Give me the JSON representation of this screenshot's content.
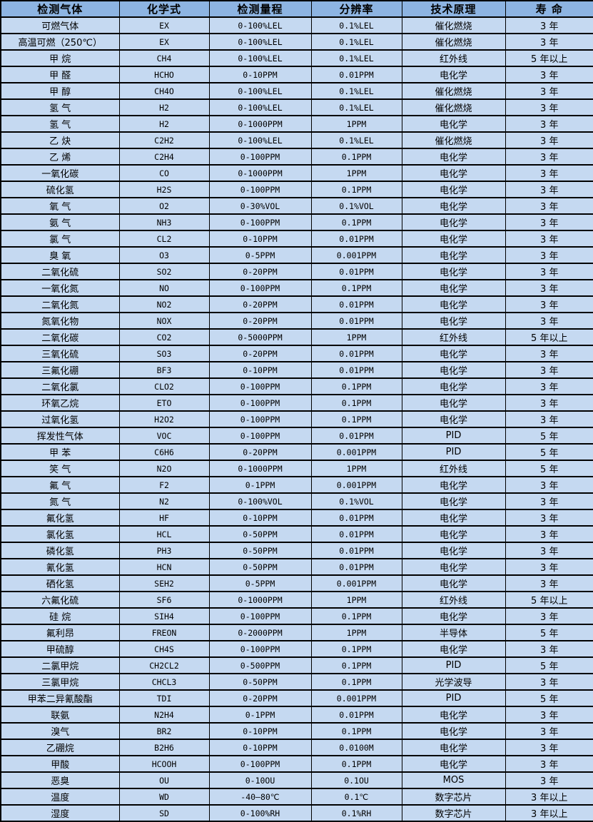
{
  "table": {
    "columns": [
      {
        "key": "gas",
        "label": "检测气体"
      },
      {
        "key": "formula",
        "label": "化学式"
      },
      {
        "key": "range",
        "label": "检测量程"
      },
      {
        "key": "resolution",
        "label": "分辨率"
      },
      {
        "key": "principle",
        "label": "技术原理"
      },
      {
        "key": "lifespan",
        "label": "寿 命"
      }
    ],
    "rows": [
      [
        "可燃气体",
        "EX",
        "0-100%LEL",
        "0.1%LEL",
        "催化燃烧",
        "3 年"
      ],
      [
        "高温可燃（250℃）",
        "EX",
        "0-100%LEL",
        "0.1%LEL",
        "催化燃烧",
        "3 年"
      ],
      [
        "甲 烷",
        "CH4",
        "0-100%LEL",
        "0.1%LEL",
        "红外线",
        "5 年以上"
      ],
      [
        "甲 醛",
        "HCHO",
        "0-10PPM",
        "0.01PPM",
        "电化学",
        "3 年"
      ],
      [
        "甲 醇",
        "CH4O",
        "0-100%LEL",
        "0.1%LEL",
        "催化燃烧",
        "3 年"
      ],
      [
        "氢 气",
        "H2",
        "0-100%LEL",
        "0.1%LEL",
        "催化燃烧",
        "3 年"
      ],
      [
        "氢 气",
        "H2",
        "0-1000PPM",
        "1PPM",
        "电化学",
        "3 年"
      ],
      [
        "乙 炔",
        "C2H2",
        "0-100%LEL",
        "0.1%LEL",
        "催化燃烧",
        "3 年"
      ],
      [
        "乙 烯",
        "C2H4",
        "0-100PPM",
        "0.1PPM",
        "电化学",
        "3 年"
      ],
      [
        "一氧化碳",
        "CO",
        "0-1000PPM",
        "1PPM",
        "电化学",
        "3 年"
      ],
      [
        "硫化氢",
        "H2S",
        "0-100PPM",
        "0.1PPM",
        "电化学",
        "3 年"
      ],
      [
        "氧 气",
        "O2",
        "0-30%VOL",
        "0.1%VOL",
        "电化学",
        "3 年"
      ],
      [
        "氨 气",
        "NH3",
        "0-100PPM",
        "0.1PPM",
        "电化学",
        "3 年"
      ],
      [
        "氯 气",
        "CL2",
        "0-10PPM",
        "0.01PPM",
        "电化学",
        "3 年"
      ],
      [
        "臭 氧",
        "O3",
        "0-5PPM",
        "0.001PPM",
        "电化学",
        "3 年"
      ],
      [
        "二氧化硫",
        "SO2",
        "0-20PPM",
        "0.01PPM",
        "电化学",
        "3 年"
      ],
      [
        "一氧化氮",
        "NO",
        "0-100PPM",
        "0.1PPM",
        "电化学",
        "3 年"
      ],
      [
        "二氧化氮",
        "NO2",
        "0-20PPM",
        "0.01PPM",
        "电化学",
        "3 年"
      ],
      [
        "氮氧化物",
        "NOX",
        "0-20PPM",
        "0.01PPM",
        "电化学",
        "3 年"
      ],
      [
        "二氧化碳",
        "CO2",
        "0-5000PPM",
        "1PPM",
        "红外线",
        "5 年以上"
      ],
      [
        "三氧化硫",
        "SO3",
        "0-20PPM",
        "0.01PPM",
        "电化学",
        "3 年"
      ],
      [
        "三氟化硼",
        "BF3",
        "0-10PPM",
        "0.01PPM",
        "电化学",
        "3 年"
      ],
      [
        "二氧化氯",
        "CLO2",
        "0-100PPM",
        "0.1PPM",
        "电化学",
        "3 年"
      ],
      [
        "环氧乙烷",
        "ETO",
        "0-100PPM",
        "0.1PPM",
        "电化学",
        "3 年"
      ],
      [
        "过氧化氢",
        "H2O2",
        "0-100PPM",
        "0.1PPM",
        "电化学",
        "3 年"
      ],
      [
        "挥发性气体",
        "VOC",
        "0-100PPM",
        "0.01PPM",
        "PID",
        "5 年"
      ],
      [
        "甲 苯",
        "C6H6",
        "0-20PPM",
        "0.001PPM",
        "PID",
        "5 年"
      ],
      [
        "笑 气",
        "N2O",
        "0-1000PPM",
        "1PPM",
        "红外线",
        "5 年"
      ],
      [
        "氟 气",
        "F2",
        "0-1PPM",
        "0.001PPM",
        "电化学",
        "3 年"
      ],
      [
        "氮 气",
        "N2",
        "0-100%VOL",
        "0.1%VOL",
        "电化学",
        "3 年"
      ],
      [
        "氟化氢",
        "HF",
        "0-10PPM",
        "0.01PPM",
        "电化学",
        "3 年"
      ],
      [
        "氯化氢",
        "HCL",
        "0-50PPM",
        "0.01PPM",
        "电化学",
        "3 年"
      ],
      [
        "磷化氢",
        "PH3",
        "0-50PPM",
        "0.01PPM",
        "电化学",
        "3 年"
      ],
      [
        "氰化氢",
        "HCN",
        "0-50PPM",
        "0.01PPM",
        "电化学",
        "3 年"
      ],
      [
        "硒化氢",
        "SEH2",
        "0-5PPM",
        "0.001PPM",
        "电化学",
        "3 年"
      ],
      [
        "六氟化硫",
        "SF6",
        "0-1000PPM",
        "1PPM",
        "红外线",
        "5 年以上"
      ],
      [
        "硅 烷",
        "SIH4",
        "0-100PPM",
        "0.1PPM",
        "电化学",
        "3 年"
      ],
      [
        "氟利昂",
        "FREON",
        "0-2000PPM",
        "1PPM",
        "半导体",
        "5 年"
      ],
      [
        "甲硫醇",
        "CH4S",
        "0-100PPM",
        "0.1PPM",
        "电化学",
        "3 年"
      ],
      [
        "二氯甲烷",
        "CH2CL2",
        "0-500PPM",
        "0.1PPM",
        "PID",
        "5 年"
      ],
      [
        "三氯甲烷",
        "CHCL3",
        "0-50PPM",
        "0.1PPM",
        "光学波导",
        "3 年"
      ],
      [
        "甲苯二异氰酸酯",
        "TDI",
        "0-20PPM",
        "0.001PPM",
        "PID",
        "5 年"
      ],
      [
        "联氨",
        "N2H4",
        "0-1PPM",
        "0.01PPM",
        "电化学",
        "3 年"
      ],
      [
        "溴气",
        "BR2",
        "0-10PPM",
        "0.1PPM",
        "电化学",
        "3 年"
      ],
      [
        "乙硼烷",
        "B2H6",
        "0-10PPM",
        "0.0100M",
        "电化学",
        "3 年"
      ],
      [
        "甲酸",
        "HCOOH",
        "0-100PPM",
        "0.1PPM",
        "电化学",
        "3 年"
      ],
      [
        "恶臭",
        "OU",
        "0-10OU",
        "0.1OU",
        "MOS",
        "3 年"
      ],
      [
        "温度",
        "WD",
        "-40—80℃",
        "0.1℃",
        "数字芯片",
        "3 年以上"
      ],
      [
        "湿度",
        "SD",
        "0-100%RH",
        "0.1%RH",
        "数字芯片",
        "3 年以上"
      ]
    ]
  },
  "colors": {
    "header_bg": "#8DB4E2",
    "row_bg": "#C5D9F1",
    "border": "#000000",
    "text": "#000000"
  }
}
